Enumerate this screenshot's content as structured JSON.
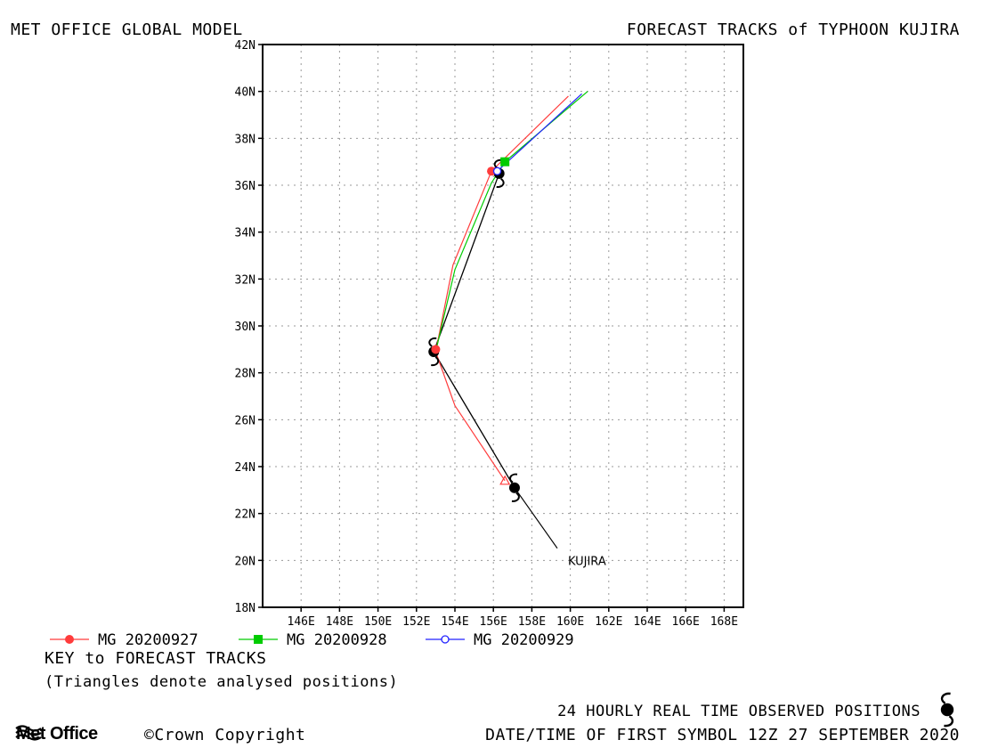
{
  "header": {
    "left_title": "MET OFFICE GLOBAL MODEL",
    "right_title": "FORECAST TRACKS of TYPHOON KUJIRA"
  },
  "key": {
    "title": "KEY to FORECAST TRACKS",
    "subtitle": "(Triangles denote analysed positions)"
  },
  "footer": {
    "observed_note": "24 HOURLY REAL TIME OBSERVED POSITIONS",
    "first_symbol": "DATE/TIME OF FIRST SYMBOL 12Z 27 SEPTEMBER 2020",
    "org": "Met Office",
    "copyright": "©Crown Copyright"
  },
  "colors": {
    "observed": "#000000",
    "mg20200927": "#ff3b3b",
    "mg20200928": "#00cc00",
    "mg20200929": "#2222ff"
  },
  "chart_data": {
    "type": "line",
    "xlim": [
      144,
      169
    ],
    "ylim": [
      18,
      42
    ],
    "grid": true,
    "x_ticks": [
      146,
      148,
      150,
      152,
      154,
      156,
      158,
      160,
      162,
      164,
      166,
      168
    ],
    "x_tick_labels": [
      "146E",
      "148E",
      "150E",
      "152E",
      "154E",
      "156E",
      "158E",
      "160E",
      "162E",
      "164E",
      "166E",
      "168E"
    ],
    "y_ticks": [
      18,
      20,
      22,
      24,
      26,
      28,
      30,
      32,
      34,
      36,
      38,
      40,
      42
    ],
    "y_tick_labels": [
      "18N",
      "20N",
      "22N",
      "24N",
      "26N",
      "28N",
      "30N",
      "32N",
      "34N",
      "36N",
      "38N",
      "40N",
      "42N"
    ],
    "observed_track": {
      "name": "KUJIRA",
      "points": [
        [
          157.1,
          23.1
        ],
        [
          152.9,
          28.9
        ],
        [
          156.3,
          36.5
        ]
      ]
    },
    "series": [
      {
        "name": "MG 20200927",
        "color": "#ff3b3b",
        "marker": "filled-circle",
        "points": [
          [
            156.6,
            23.4
          ],
          [
            154.0,
            26.6
          ],
          [
            153.0,
            28.9
          ],
          [
            153.9,
            32.6
          ],
          [
            155.9,
            36.6
          ],
          [
            159.9,
            39.8
          ]
        ],
        "markers_at": [
          [
            153.0,
            29.0
          ],
          [
            155.9,
            36.6
          ]
        ]
      },
      {
        "name": "MG 20200928",
        "color": "#00cc00",
        "marker": "filled-square",
        "points": [
          [
            153.0,
            28.9
          ],
          [
            154.0,
            32.4
          ],
          [
            155.9,
            36.1
          ],
          [
            156.6,
            37.0
          ],
          [
            160.9,
            40.0
          ]
        ],
        "markers_at": [
          [
            156.6,
            37.0
          ]
        ]
      },
      {
        "name": "MG 20200929",
        "color": "#2222ff",
        "marker": "open-circle",
        "points": [
          [
            156.2,
            36.6
          ],
          [
            156.6,
            36.9
          ],
          [
            160.6,
            39.9
          ]
        ],
        "markers_at": [
          [
            156.2,
            36.6
          ]
        ]
      }
    ],
    "analysed_triangles": [
      {
        "series": "MG 20200927",
        "x": 156.6,
        "y": 23.4
      }
    ],
    "storm_label": "KUJIRA"
  }
}
